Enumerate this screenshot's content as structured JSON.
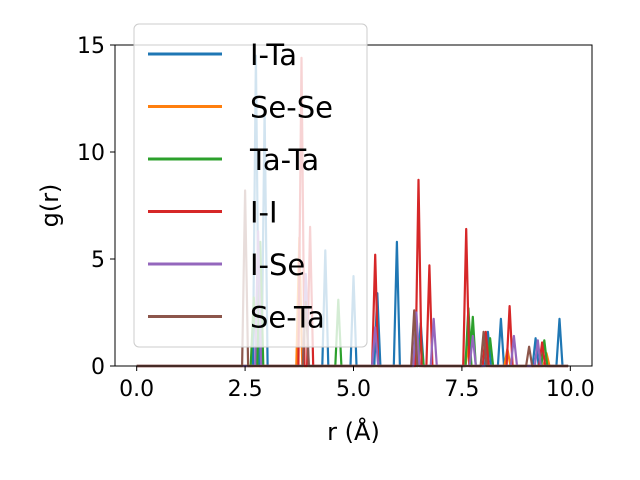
{
  "chart_data": {
    "type": "line",
    "xlabel": "r (Å)",
    "ylabel": "g(r)",
    "xlim": [
      -0.5,
      10.5
    ],
    "ylim": [
      0,
      15
    ],
    "xticks": [
      "0.0",
      "2.5",
      "5.0",
      "7.5",
      "10.0"
    ],
    "xtick_values": [
      0,
      2.5,
      5,
      7.5,
      10
    ],
    "yticks": [
      "0",
      "5",
      "10",
      "15"
    ],
    "ytick_values": [
      0,
      5,
      10,
      15
    ],
    "grid": false,
    "legend_position": "upper-left",
    "legend_alpha": 0.8,
    "series": [
      {
        "name": "I-Ta",
        "color": "#1f77b4",
        "peaks": [
          [
            2.75,
            14.5
          ],
          [
            2.95,
            12.0
          ],
          [
            4.35,
            5.4
          ],
          [
            5.0,
            4.2
          ],
          [
            5.55,
            3.4
          ],
          [
            6.0,
            5.8
          ],
          [
            6.55,
            2.0
          ],
          [
            7.65,
            1.5
          ],
          [
            8.1,
            1.6
          ],
          [
            8.4,
            2.2
          ],
          [
            9.2,
            1.3
          ],
          [
            9.75,
            2.2
          ]
        ]
      },
      {
        "name": "Se-Se",
        "color": "#ff7f0e",
        "peaks": [
          [
            3.75,
            6.0
          ],
          [
            6.45,
            2.1
          ],
          [
            7.65,
            0.9
          ],
          [
            8.55,
            0.8
          ],
          [
            9.45,
            0.6
          ]
        ]
      },
      {
        "name": "Ta-Ta",
        "color": "#2ca02c",
        "peaks": [
          [
            2.7,
            3.2
          ],
          [
            2.85,
            5.8
          ],
          [
            4.65,
            3.1
          ],
          [
            6.55,
            1.3
          ],
          [
            7.65,
            2.7
          ],
          [
            7.75,
            2.3
          ],
          [
            8.15,
            1.3
          ],
          [
            9.4,
            1.2
          ]
        ]
      },
      {
        "name": "I-I",
        "color": "#d62728",
        "peaks": [
          [
            3.8,
            14.4
          ],
          [
            4.0,
            6.5
          ],
          [
            5.5,
            5.2
          ],
          [
            6.5,
            8.7
          ],
          [
            6.75,
            4.7
          ],
          [
            7.6,
            6.4
          ],
          [
            8.05,
            1.6
          ],
          [
            8.6,
            2.8
          ],
          [
            9.35,
            1.1
          ]
        ]
      },
      {
        "name": "I-Se",
        "color": "#9467bd",
        "peaks": [
          [
            2.8,
            6.3
          ],
          [
            3.9,
            4.3
          ],
          [
            5.5,
            1.8
          ],
          [
            6.45,
            2.5
          ],
          [
            6.85,
            2.2
          ],
          [
            7.75,
            1.4
          ],
          [
            8.7,
            1.4
          ],
          [
            9.25,
            1.2
          ]
        ]
      },
      {
        "name": "Se-Ta",
        "color": "#8c564b",
        "peaks": [
          [
            2.5,
            8.2
          ],
          [
            3.9,
            3.0
          ],
          [
            6.4,
            2.6
          ],
          [
            8.0,
            1.6
          ],
          [
            9.05,
            0.9
          ]
        ]
      }
    ]
  }
}
